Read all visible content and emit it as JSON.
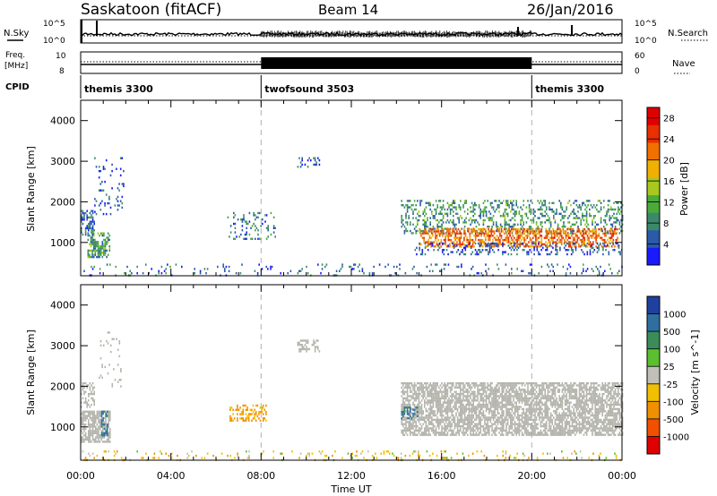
{
  "header": {
    "station": "Saskatoon (fitACF)",
    "beam": "Beam 14",
    "date": "26/Jan/2016"
  },
  "left_labels": {
    "nsky": "N.Sky",
    "freq_top": "Freq.",
    "freq_unit": "[MHz]",
    "cpid": "CPID"
  },
  "right_labels": {
    "nsearch": "N.Search",
    "nave": "Nave"
  },
  "strip_ticks": {
    "noise_left": [
      "10^5",
      "10^0"
    ],
    "noise_right": [
      "10^5",
      "10^0"
    ],
    "freq_left": [
      "10",
      "8"
    ],
    "nave_right": [
      "60",
      "0"
    ]
  },
  "cpid_segments": [
    {
      "label": "themis 3300",
      "start_h": 0,
      "end_h": 8
    },
    {
      "label": "twofsound 3503",
      "start_h": 8,
      "end_h": 20
    },
    {
      "label": "themis 3300",
      "start_h": 20,
      "end_h": 24
    }
  ],
  "colors": {
    "power_scale": [
      "#1a1aff",
      "#2a5aa8",
      "#3a8a6a",
      "#4aaa3a",
      "#a8c820",
      "#f0b000",
      "#f07000",
      "#e83000",
      "#e00000"
    ],
    "velocity_scale": [
      "#2040a0",
      "#2f6f9f",
      "#3c8c5a",
      "#5ac030",
      "#c0c0b8",
      "#f0c000",
      "#f09000",
      "#f05000",
      "#e00000"
    ],
    "ground_scatter": "#b4b4ac",
    "dashed_marker": "#b0b0b0"
  },
  "chart_data": [
    {
      "type": "heatmap",
      "name": "power",
      "xlabel": "Time UT",
      "ylabel": "Slant Range [km]",
      "x_ticks": [
        "00:00",
        "04:00",
        "08:00",
        "12:00",
        "16:00",
        "20:00",
        "00:00"
      ],
      "xlim_hours": [
        0,
        24
      ],
      "ylim": [
        180,
        4500
      ],
      "y_ticks": [
        1000,
        2000,
        3000,
        4000
      ],
      "colorbar_label": "Power [dB]",
      "colorbar_ticks": [
        "4",
        "8",
        "12",
        "16",
        "20",
        "24",
        "28"
      ],
      "colorbar_range": [
        0,
        30
      ],
      "regions": [
        {
          "t0": 0.3,
          "t1": 1.3,
          "r0": 650,
          "r1": 1250,
          "level": 10,
          "density": 0.65
        },
        {
          "t0": 0.0,
          "t1": 0.6,
          "r0": 1200,
          "r1": 1800,
          "level": 6,
          "density": 0.5
        },
        {
          "t0": 0.6,
          "t1": 1.9,
          "r0": 1700,
          "r1": 3100,
          "level": 4,
          "density": 0.12
        },
        {
          "t0": 6.5,
          "t1": 8.6,
          "r0": 1100,
          "r1": 1750,
          "level": 7,
          "density": 0.18
        },
        {
          "t0": 9.6,
          "t1": 10.6,
          "r0": 2850,
          "r1": 3100,
          "level": 4,
          "density": 0.35
        },
        {
          "t0": 14.2,
          "t1": 24.0,
          "r0": 1250,
          "r1": 2050,
          "level": 9,
          "density": 0.32
        },
        {
          "t0": 15.0,
          "t1": 23.8,
          "r0": 900,
          "r1": 1350,
          "level": 22,
          "density": 0.55
        },
        {
          "t0": 14.8,
          "t1": 24.0,
          "r0": 700,
          "r1": 1000,
          "level": 5,
          "density": 0.25
        },
        {
          "t0": 0.0,
          "t1": 24.0,
          "r0": 180,
          "r1": 480,
          "level": 6,
          "density": 0.09
        }
      ]
    },
    {
      "type": "heatmap",
      "name": "velocity",
      "xlabel": "Time UT",
      "ylabel": "Slant Range [km]",
      "x_ticks": [
        "00:00",
        "04:00",
        "08:00",
        "12:00",
        "16:00",
        "20:00",
        "00:00"
      ],
      "xlim_hours": [
        0,
        24
      ],
      "ylim": [
        180,
        4500
      ],
      "y_ticks": [
        1000,
        2000,
        3000,
        4000
      ],
      "colorbar_label": "Velocity [m s^-1]",
      "colorbar_ticks": [
        "1000",
        "500",
        "100",
        "25",
        "-25",
        "-100",
        "-500",
        "-1000"
      ],
      "regions": [
        {
          "t0": 0.0,
          "t1": 1.3,
          "r0": 650,
          "r1": 1400,
          "kind": "ground",
          "density": 0.7
        },
        {
          "t0": 0.9,
          "t1": 1.2,
          "r0": 800,
          "r1": 1400,
          "velocity": 150,
          "density": 0.7
        },
        {
          "t0": 0.0,
          "t1": 0.6,
          "r0": 1500,
          "r1": 2100,
          "kind": "ground",
          "density": 0.45
        },
        {
          "t0": 0.8,
          "t1": 1.8,
          "r0": 2000,
          "r1": 3400,
          "kind": "ground",
          "density": 0.08
        },
        {
          "t0": 6.6,
          "t1": 8.2,
          "r0": 1150,
          "r1": 1550,
          "velocity": -150,
          "density": 0.35
        },
        {
          "t0": 9.6,
          "t1": 10.6,
          "r0": 2850,
          "r1": 3150,
          "kind": "ground",
          "density": 0.4
        },
        {
          "t0": 14.2,
          "t1": 24.0,
          "r0": 800,
          "r1": 2100,
          "kind": "ground",
          "density": 0.72
        },
        {
          "t0": 14.2,
          "t1": 14.9,
          "r0": 1200,
          "r1": 1500,
          "velocity": 150,
          "density": 0.35
        },
        {
          "t0": 0.0,
          "t1": 24.0,
          "r0": 180,
          "r1": 420,
          "velocity": -60,
          "density": 0.12
        }
      ]
    }
  ]
}
